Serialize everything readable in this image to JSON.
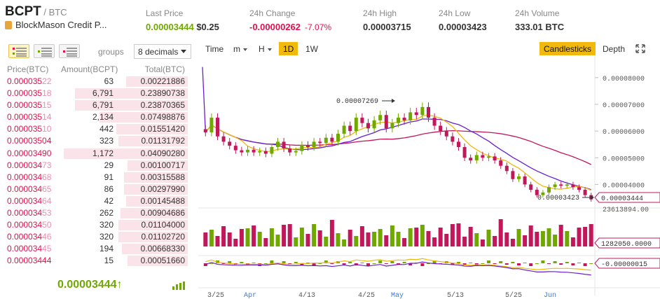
{
  "header": {
    "symbol": "BCPT",
    "quote": " / BTC",
    "fullname": "BlockMason Credit P...",
    "last_price_label": "Last Price",
    "last_price": "0.00003444",
    "last_price_usd": "$0.25",
    "change_label": "24h Change",
    "change": "-0.00000262",
    "change_pct": "-7.07%",
    "high_label": "24h High",
    "high": "0.00003715",
    "low_label": "24h Low",
    "low": "0.00003423",
    "volume_label": "24h Volume",
    "volume": "333.01 BTC"
  },
  "orderbook": {
    "groups_label": "groups",
    "decimals": "8 decimals",
    "columns": [
      "Price(BTC)",
      "Amount(BCPT)",
      "Total(BTC)"
    ],
    "rows": [
      {
        "price_bright": "0.000035",
        "price_dim": "22",
        "amount": "63",
        "total": "0.00221886",
        "depth": 0.33
      },
      {
        "price_bright": "0.000035",
        "price_dim": "18",
        "amount": "6,791",
        "total": "0.23890738",
        "depth": 0.6
      },
      {
        "price_bright": "0.000035",
        "price_dim": "15",
        "amount": "6,791",
        "total": "0.23870365",
        "depth": 0.6
      },
      {
        "price_bright": "0.000035",
        "price_dim": "14",
        "amount": "2,134",
        "total": "0.07498876",
        "depth": 0.47
      },
      {
        "price_bright": "0.000035",
        "price_dim": "10",
        "amount": "442",
        "total": "0.01551420",
        "depth": 0.38
      },
      {
        "price_bright": "0.00003504",
        "price_dim": "",
        "amount": "323",
        "total": "0.01131792",
        "depth": 0.37
      },
      {
        "price_bright": "0.00003490",
        "price_dim": "",
        "amount": "1,172",
        "total": "0.04090280",
        "depth": 0.66
      },
      {
        "price_bright": "0.000034",
        "price_dim": "73",
        "amount": "29",
        "total": "0.00100717",
        "depth": 0.32
      },
      {
        "price_bright": "0.000034",
        "price_dim": "68",
        "amount": "91",
        "total": "0.00315588",
        "depth": 0.34
      },
      {
        "price_bright": "0.000034",
        "price_dim": "65",
        "amount": "86",
        "total": "0.00297990",
        "depth": 0.34
      },
      {
        "price_bright": "0.000034",
        "price_dim": "64",
        "amount": "42",
        "total": "0.00145488",
        "depth": 0.33
      },
      {
        "price_bright": "0.000034",
        "price_dim": "53",
        "amount": "262",
        "total": "0.00904686",
        "depth": 0.36
      },
      {
        "price_bright": "0.000034",
        "price_dim": "50",
        "amount": "320",
        "total": "0.01104000",
        "depth": 0.37
      },
      {
        "price_bright": "0.000034",
        "price_dim": "46",
        "amount": "320",
        "total": "0.01102720",
        "depth": 0.37
      },
      {
        "price_bright": "0.000034",
        "price_dim": "45",
        "amount": "194",
        "total": "0.00668330",
        "depth": 0.35
      },
      {
        "price_bright": "0.00003444",
        "price_dim": "",
        "amount": "15",
        "total": "0.00051660",
        "depth": 0.32
      }
    ],
    "last_price": "0.00003444",
    "last_arrow": "↑"
  },
  "toolbar": {
    "time": "Time",
    "m": "m",
    "h": "H",
    "d1": "1D",
    "w1": "1W",
    "candlesticks": "Candlesticks",
    "depth": "Depth",
    "expand_icon": "expand-icon"
  },
  "colors": {
    "up": "#70a800",
    "down": "#c2185b",
    "ma_fast": "#f0b90b",
    "ma_mid": "#6a1fd1",
    "ma_slow": "#c2185b"
  },
  "chart_data": {
    "type": "candlestick",
    "y_ticks": [
      "0.00008000",
      "0.00007000",
      "0.00006000",
      "0.00005000",
      "0.00004000"
    ],
    "ylim": [
      3.25e-05,
      8.6e-05
    ],
    "x_ticks": [
      "3/25",
      "Apr",
      "4/13",
      "4/25",
      "May",
      "5/13",
      "5/25",
      "Jun"
    ],
    "current_price_label": "0.00003444",
    "max_annotation": "0.00007269",
    "min_annotation": "0.00003423",
    "volume_label": "23613894.00",
    "volume_current_label": "1282050.0000",
    "macd_label": "-0.00000015",
    "close": [
      5.95e-05,
      6.5e-05,
      5.8e-05,
      5.6e-05,
      5.45e-05,
      5.28e-05,
      5.2e-05,
      5.3e-05,
      5.2e-05,
      5.25e-05,
      5.15e-05,
      5.4e-05,
      5.6e-05,
      5.35e-05,
      5.2e-05,
      5.25e-05,
      5.48e-05,
      5.4e-05,
      5.6e-05,
      5.55e-05,
      5.75e-05,
      5.6e-05,
      5.9e-05,
      6.2e-05,
      6e-05,
      6.5e-05,
      6.3e-05,
      6.1e-05,
      6.4e-05,
      6.6e-05,
      6.1e-05,
      6.3e-05,
      6.5e-05,
      6.4e-05,
      6.7e-05,
      6.6e-05,
      6.9e-05,
      6.5e-05,
      6.2e-05,
      6e-05,
      5.8e-05,
      5.6e-05,
      5.4e-05,
      5e-05,
      4.9e-05,
      5.1e-05,
      5e-05,
      5.05e-05,
      4.9e-05,
      4.7e-05,
      4.5e-05,
      4.2e-05,
      4.3e-05,
      4e-05,
      3.8e-05,
      3.6e-05,
      3.7e-05,
      3.9e-05,
      4e-05,
      3.95e-05,
      4e-05,
      3.9e-05,
      3.8e-05,
      3.6e-05,
      3.44e-05
    ]
  }
}
